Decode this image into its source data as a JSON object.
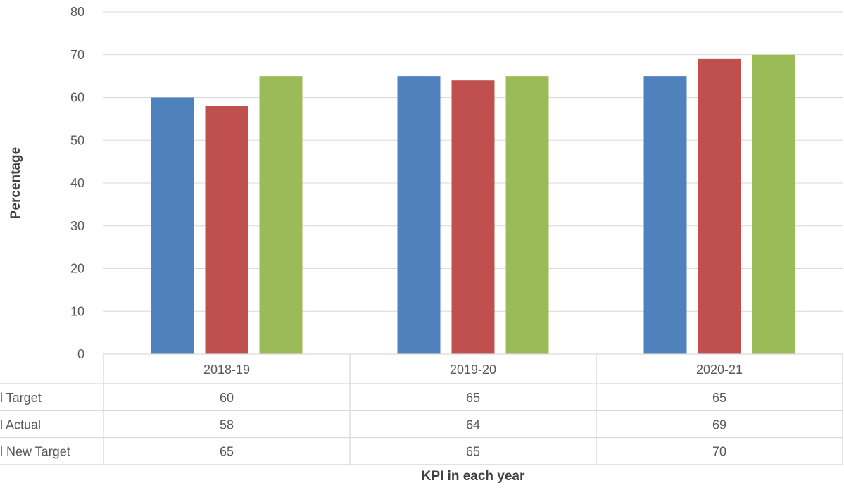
{
  "chart_data": {
    "type": "bar",
    "title": "",
    "xlabel": "KPI in each year",
    "ylabel": "Percentage",
    "categories": [
      "2018-19",
      "2019-20",
      "2020-21"
    ],
    "series": [
      {
        "name": "l Target",
        "color": "#4f81bd",
        "values": [
          60,
          65,
          65
        ]
      },
      {
        "name": "l  Actual",
        "color": "#c0504d",
        "values": [
          58,
          64,
          69
        ]
      },
      {
        "name": "l  New Target",
        "color": "#9bbb59",
        "values": [
          65,
          65,
          70
        ]
      }
    ],
    "ylim": [
      0,
      80
    ],
    "yticks": [
      0,
      10,
      20,
      30,
      40,
      50,
      60,
      70,
      80
    ],
    "grid": true,
    "legend": "data-table-below"
  }
}
